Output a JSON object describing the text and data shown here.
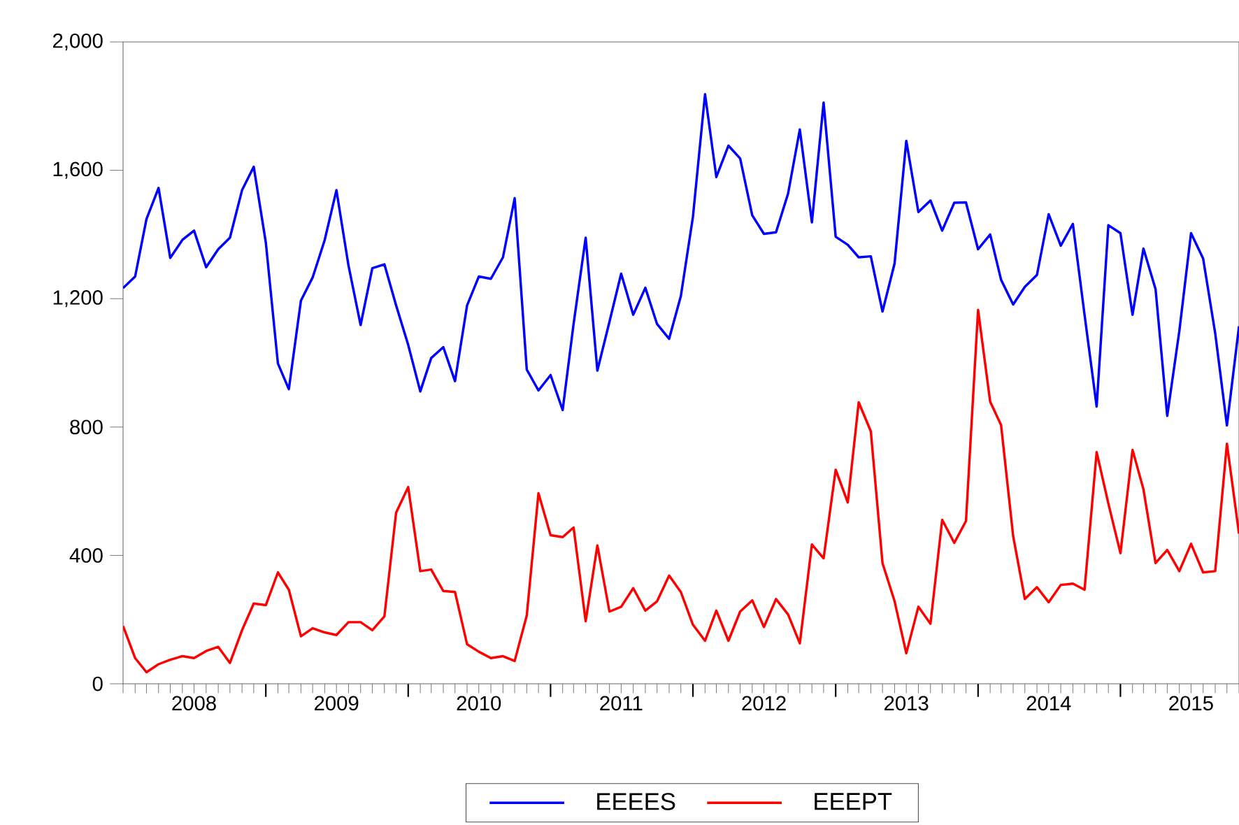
{
  "chart_data": {
    "type": "line",
    "x": [
      "2008-01",
      "2008-02",
      "2008-03",
      "2008-04",
      "2008-05",
      "2008-06",
      "2008-07",
      "2008-08",
      "2008-09",
      "2008-10",
      "2008-11",
      "2008-12",
      "2009-01",
      "2009-02",
      "2009-03",
      "2009-04",
      "2009-05",
      "2009-06",
      "2009-07",
      "2009-08",
      "2009-09",
      "2009-10",
      "2009-11",
      "2009-12",
      "2010-01",
      "2010-02",
      "2010-03",
      "2010-04",
      "2010-05",
      "2010-06",
      "2010-07",
      "2010-08",
      "2010-09",
      "2010-10",
      "2010-11",
      "2010-12",
      "2011-01",
      "2011-02",
      "2011-03",
      "2011-04",
      "2011-05",
      "2011-06",
      "2011-07",
      "2011-08",
      "2011-09",
      "2011-10",
      "2011-11",
      "2011-12",
      "2012-01",
      "2012-02",
      "2012-03",
      "2012-04",
      "2012-05",
      "2012-06",
      "2012-07",
      "2012-08",
      "2012-09",
      "2012-10",
      "2012-11",
      "2012-12",
      "2013-01",
      "2013-02",
      "2013-03",
      "2013-04",
      "2013-05",
      "2013-06",
      "2013-07",
      "2013-08",
      "2013-09",
      "2013-10",
      "2013-11",
      "2013-12",
      "2014-01",
      "2014-02",
      "2014-03",
      "2014-04",
      "2014-05",
      "2014-06",
      "2014-07",
      "2014-08",
      "2014-09",
      "2014-10",
      "2014-11",
      "2014-12",
      "2015-01",
      "2015-02",
      "2015-03",
      "2015-04",
      "2015-05",
      "2015-06",
      "2015-07",
      "2015-08",
      "2015-09",
      "2015-10",
      "2015-11"
    ],
    "series": [
      {
        "name": "EEEES",
        "color": "#0000ff",
        "values": [
          1233,
          1269,
          1448,
          1545,
          1327,
          1383,
          1412,
          1298,
          1354,
          1390,
          1538,
          1611,
          1375,
          998,
          918,
          1194,
          1266,
          1383,
          1538,
          1303,
          1118,
          1295,
          1307,
          1179,
          1056,
          911,
          1015,
          1049,
          943,
          1179,
          1269,
          1262,
          1329,
          1513,
          979,
          914,
          962,
          853,
          1121,
          1390,
          976,
          1128,
          1278,
          1150,
          1234,
          1121,
          1075,
          1208,
          1455,
          1837,
          1579,
          1677,
          1637,
          1460,
          1402,
          1407,
          1528,
          1727,
          1438,
          1811,
          1393,
          1368,
          1329,
          1332,
          1160,
          1310,
          1692,
          1470,
          1506,
          1412,
          1499,
          1500,
          1354,
          1400,
          1259,
          1182,
          1237,
          1274,
          1463,
          1365,
          1433,
          1150,
          864,
          1429,
          1404,
          1150,
          1356,
          1230,
          835,
          1099,
          1404,
          1325,
          1092,
          805,
          1114
        ]
      },
      {
        "name": "EEEPT",
        "color": "#ff0000",
        "values": [
          180,
          80,
          36,
          61,
          75,
          86,
          80,
          102,
          115,
          65,
          167,
          250,
          245,
          347,
          293,
          148,
          173,
          160,
          152,
          192,
          192,
          167,
          210,
          533,
          613,
          351,
          356,
          289,
          286,
          123,
          100,
          80,
          86,
          71,
          213,
          594,
          463,
          457,
          487,
          195,
          431,
          225,
          240,
          298,
          228,
          257,
          337,
          286,
          184,
          134,
          228,
          134,
          225,
          260,
          177,
          264,
          216,
          126,
          434,
          391,
          667,
          565,
          877,
          787,
          376,
          257,
          95,
          240,
          187,
          511,
          439,
          507,
          1165,
          879,
          806,
          460,
          264,
          301,
          254,
          308,
          312,
          293,
          722,
          562,
          407,
          729,
          606,
          376,
          417,
          351,
          436,
          347,
          351,
          748,
          468
        ]
      }
    ],
    "xlim": [
      "2008-01",
      "2015-11"
    ],
    "xticks": [
      {
        "value": "2008-07",
        "label": "2008"
      },
      {
        "value": "2009-07",
        "label": "2009"
      },
      {
        "value": "2010-07",
        "label": "2010"
      },
      {
        "value": "2011-07",
        "label": "2011"
      },
      {
        "value": "2012-07",
        "label": "2012"
      },
      {
        "value": "2013-07",
        "label": "2013"
      },
      {
        "value": "2014-07",
        "label": "2014"
      },
      {
        "value": "2015-07",
        "label": "2015"
      },
      {
        "value": "2009-01",
        "label": null
      },
      {
        "value": "2010-01",
        "label": null
      },
      {
        "value": "2011-01",
        "label": null
      },
      {
        "value": "2012-01",
        "label": null
      },
      {
        "value": "2013-01",
        "label": null
      },
      {
        "value": "2014-01",
        "label": null
      },
      {
        "value": "2015-01",
        "label": null
      }
    ],
    "ylim": [
      0,
      2000
    ],
    "yticks": [
      0,
      400,
      800,
      {
        "value": 1200,
        "label": "1,200"
      },
      {
        "value": 1600,
        "label": "1,600"
      },
      {
        "value": 2000,
        "label": "2,000"
      }
    ],
    "grid": false,
    "legend": "bottom",
    "marker": "none",
    "line_style": "solid"
  }
}
